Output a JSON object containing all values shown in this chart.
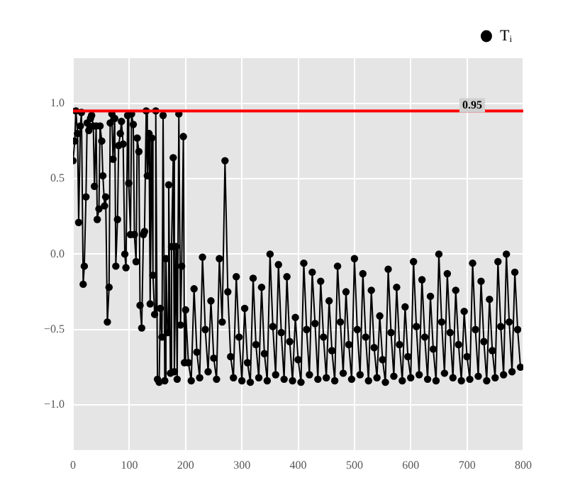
{
  "chart_data": {
    "type": "line",
    "xlim": [
      0,
      800
    ],
    "xticks": [
      0,
      100,
      200,
      300,
      400,
      500,
      600,
      700,
      800
    ],
    "ylim": [
      -1.3,
      1.3
    ],
    "yticks": [
      {
        "value": -1,
        "label": "−1.0"
      },
      {
        "value": -0.5,
        "label": "−0.5"
      },
      {
        "value": 0,
        "label": "0.0"
      },
      {
        "value": 0.5,
        "label": "0.5"
      },
      {
        "value": 1,
        "label": "1.0"
      }
    ],
    "grid": true,
    "legend": "top right",
    "marker": "circle",
    "line_style": "solid",
    "ref_lines": [
      {
        "axis": "y",
        "value": 0.95,
        "label": "0.95",
        "color": "#ff0000"
      }
    ],
    "series": [
      {
        "name": "Tᵢ",
        "color": "#000000",
        "x": [
          0,
          3,
          5,
          8,
          10,
          13,
          15,
          18,
          20,
          23,
          25,
          28,
          31,
          33,
          36,
          38,
          41,
          43,
          46,
          48,
          51,
          53,
          56,
          58,
          61,
          64,
          66,
          69,
          71,
          74,
          76,
          79,
          81,
          84,
          86,
          89,
          92,
          94,
          97,
          99,
          102,
          104,
          107,
          109,
          112,
          114,
          117,
          119,
          122,
          125,
          127,
          130,
          132,
          135,
          137,
          140,
          142,
          145,
          147,
          150,
          153,
          155,
          158,
          160,
          163,
          165,
          168,
          170,
          173,
          175,
          178,
          180,
          183,
          185,
          188,
          191,
          193,
          196,
          198,
          200,
          205,
          210,
          215,
          220,
          225,
          230,
          235,
          240,
          245,
          250,
          255,
          260,
          265,
          270,
          275,
          280,
          285,
          290,
          295,
          300,
          305,
          310,
          315,
          320,
          325,
          330,
          335,
          340,
          345,
          350,
          355,
          360,
          365,
          370,
          375,
          380,
          385,
          390,
          395,
          400,
          405,
          410,
          415,
          420,
          425,
          430,
          435,
          440,
          445,
          450,
          455,
          460,
          465,
          470,
          475,
          480,
          485,
          490,
          495,
          500,
          505,
          510,
          515,
          520,
          525,
          530,
          535,
          540,
          545,
          550,
          555,
          560,
          565,
          570,
          575,
          580,
          585,
          590,
          595,
          600,
          605,
          610,
          615,
          620,
          625,
          630,
          635,
          640,
          645,
          650,
          655,
          660,
          665,
          670,
          675,
          680,
          685,
          690,
          695,
          700,
          705,
          710,
          715,
          720,
          725,
          730,
          735,
          740,
          745,
          750,
          755,
          760,
          765,
          770,
          775,
          780,
          785,
          790,
          795
        ],
        "values": [
          0.62,
          0.75,
          0.95,
          0.8,
          0.21,
          0.85,
          0.94,
          -0.2,
          -0.08,
          0.38,
          0.87,
          0.82,
          0.9,
          0.92,
          0.85,
          0.45,
          0.85,
          0.23,
          0.3,
          0.85,
          0.75,
          0.52,
          0.32,
          0.38,
          -0.45,
          -0.22,
          0.87,
          0.93,
          0.63,
          0.9,
          -0.08,
          0.23,
          0.72,
          0.8,
          0.88,
          0.73,
          0.0,
          -0.09,
          0.92,
          0.47,
          0.13,
          0.93,
          0.86,
          0.13,
          -0.05,
          0.77,
          0.68,
          -0.34,
          -0.49,
          0.13,
          0.15,
          0.95,
          0.52,
          0.8,
          -0.33,
          0.77,
          -0.14,
          -0.4,
          0.95,
          -0.83,
          -0.85,
          -0.36,
          -0.55,
          0.92,
          -0.84,
          -0.03,
          -0.52,
          0.46,
          -0.79,
          0.05,
          0.64,
          -0.78,
          0.05,
          -0.83,
          0.93,
          -0.47,
          -0.08,
          0.78,
          -0.72,
          -0.37,
          -0.72,
          -0.84,
          -0.23,
          -0.65,
          -0.82,
          -0.02,
          -0.5,
          -0.78,
          -0.31,
          -0.69,
          -0.83,
          -0.03,
          -0.45,
          0.62,
          -0.25,
          -0.68,
          -0.82,
          -0.15,
          -0.55,
          -0.84,
          -0.36,
          -0.72,
          -0.85,
          -0.16,
          -0.6,
          -0.82,
          -0.22,
          -0.66,
          -0.84,
          0.0,
          -0.48,
          -0.8,
          -0.07,
          -0.52,
          -0.83,
          -0.15,
          -0.58,
          -0.84,
          -0.42,
          -0.7,
          -0.85,
          -0.06,
          -0.5,
          -0.8,
          -0.12,
          -0.46,
          -0.83,
          -0.18,
          -0.55,
          -0.82,
          -0.31,
          -0.64,
          -0.84,
          -0.08,
          -0.45,
          -0.79,
          -0.25,
          -0.6,
          -0.83,
          -0.03,
          -0.5,
          -0.8,
          -0.13,
          -0.55,
          -0.84,
          -0.24,
          -0.62,
          -0.82,
          -0.41,
          -0.7,
          -0.85,
          -0.1,
          -0.52,
          -0.81,
          -0.22,
          -0.6,
          -0.84,
          -0.35,
          -0.68,
          -0.82,
          -0.05,
          -0.48,
          -0.8,
          -0.17,
          -0.55,
          -0.83,
          -0.28,
          -0.63,
          -0.84,
          0.0,
          -0.45,
          -0.79,
          -0.13,
          -0.52,
          -0.82,
          -0.24,
          -0.6,
          -0.84,
          -0.38,
          -0.68,
          -0.83,
          -0.06,
          -0.5,
          -0.81,
          -0.18,
          -0.58,
          -0.84,
          -0.3,
          -0.64,
          -0.82,
          -0.05,
          -0.48,
          -0.8,
          0.0,
          -0.45,
          -0.78,
          -0.12,
          -0.5,
          -0.75
        ]
      }
    ]
  }
}
